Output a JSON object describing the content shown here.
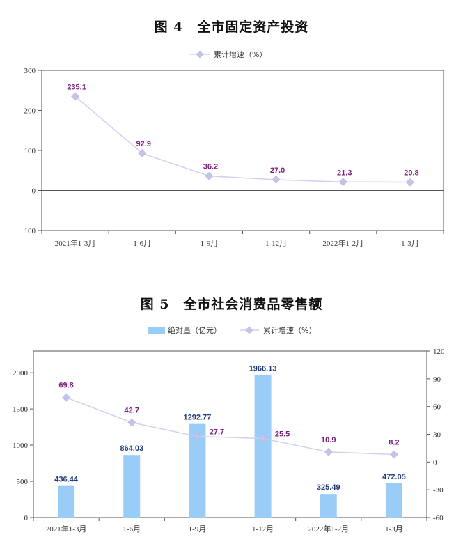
{
  "chart_data": [
    {
      "type": "line",
      "title": "图 4　全市固定资产投资",
      "categories": [
        "2021年1-3月",
        "1-6月",
        "1-9月",
        "1-12月",
        "2022年1-2月",
        "1-3月"
      ],
      "series": [
        {
          "name": "累计增速（%）",
          "values": [
            235.1,
            92.9,
            36.2,
            27.0,
            21.3,
            20.8
          ],
          "labels": [
            "235.1",
            "92.9",
            "36.2",
            "27.0",
            "21.3",
            "20.8"
          ]
        }
      ],
      "ylim": [
        -100,
        300
      ],
      "yticks": [
        "−100",
        "0",
        "100",
        "200",
        "300"
      ],
      "ytick_values": [
        -100,
        0,
        100,
        200,
        300
      ],
      "legend": "top-center",
      "grid": false,
      "colors": {
        "line": "#d0d0ee",
        "marker": "#c4c4e8",
        "label": "#7b1e7a"
      }
    },
    {
      "type": "bar+line",
      "title": "图 5　全市社会消费品零售额",
      "categories": [
        "2021年1-3月",
        "1-6月",
        "1-9月",
        "1-12月",
        "2022年1-2月",
        "1-3月"
      ],
      "bar_series": {
        "name": "绝对量（亿元）",
        "values": [
          436.44,
          864.03,
          1292.77,
          1966.13,
          325.49,
          472.05
        ],
        "labels": [
          "436.44",
          "864.03",
          "1292.77",
          "1966.13",
          "325.49",
          "472.05"
        ]
      },
      "line_series": {
        "name": "累计增速（%）",
        "values": [
          69.8,
          42.7,
          27.7,
          25.5,
          10.9,
          8.2
        ],
        "labels": [
          "69.8",
          "42.7",
          "27.7",
          "25.5",
          "10.9",
          "8.2"
        ]
      },
      "ylim": [
        0,
        2300
      ],
      "yticks": [
        "0",
        "500",
        "1000",
        "1500",
        "2000"
      ],
      "ytick_values": [
        0,
        500,
        1000,
        1500,
        2000
      ],
      "y2lim": [
        -60,
        120
      ],
      "y2ticks": [
        "-60",
        "-30",
        "0",
        "30",
        "60",
        "90",
        "120"
      ],
      "y2tick_values": [
        -60,
        -30,
        0,
        30,
        60,
        90,
        120
      ],
      "legend": "top-center",
      "grid": false,
      "colors": {
        "bar": "#99ccf7",
        "bar_label": "#1f3a7a",
        "line": "#d0d0ee",
        "marker": "#c4c4e8",
        "line_label": "#7b1e7a"
      }
    }
  ]
}
